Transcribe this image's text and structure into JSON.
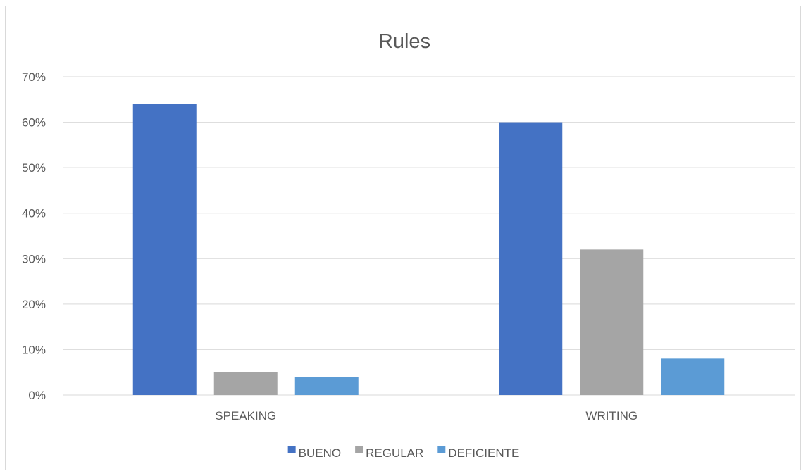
{
  "chart_data": {
    "type": "bar",
    "title": "Rules",
    "categories": [
      "SPEAKING",
      "WRITING"
    ],
    "series": [
      {
        "name": "BUENO",
        "values": [
          64,
          60
        ],
        "color": "#4472C4"
      },
      {
        "name": "REGULAR",
        "values": [
          5,
          32
        ],
        "color": "#A5A5A5"
      },
      {
        "name": "DEFICIENTE",
        "values": [
          4,
          8
        ],
        "color": "#5B9BD5"
      }
    ],
    "ylim": [
      0,
      70
    ],
    "yticks": [
      0,
      10,
      20,
      30,
      40,
      50,
      60,
      70
    ],
    "ytick_labels": [
      "0%",
      "10%",
      "20%",
      "30%",
      "40%",
      "50%",
      "60%",
      "70%"
    ],
    "xlabel": "",
    "ylabel": "",
    "grid": true,
    "legend_position": "bottom"
  }
}
